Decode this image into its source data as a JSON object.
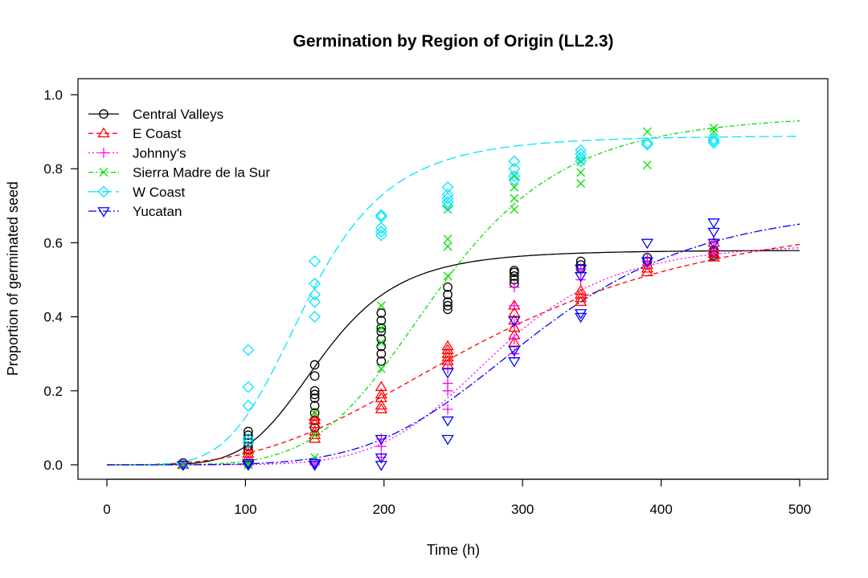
{
  "chart_data": {
    "type": "scatter",
    "title": "Germination by Region of Origin (LL2.3)",
    "xlabel": "Time (h)",
    "ylabel": "Proportion of germinated seed",
    "xlim": [
      0,
      500
    ],
    "ylim": [
      0,
      1
    ],
    "xticks": [
      0,
      100,
      200,
      300,
      400,
      500
    ],
    "yticks": [
      0.0,
      0.2,
      0.4,
      0.6,
      0.8,
      1.0
    ],
    "ytick_labels": [
      "0.0",
      "0.2",
      "0.4",
      "0.6",
      "0.8",
      "1.0"
    ],
    "grid": false,
    "legend_position": "top-left",
    "series": [
      {
        "name": "Central Valleys",
        "color": "#000000",
        "marker": "circle",
        "dash": "",
        "model": {
          "d": 0.58,
          "e": 155,
          "b": -5.4
        },
        "points": [
          [
            55,
            0.0
          ],
          [
            55,
            0.005
          ],
          [
            102,
            0.04
          ],
          [
            102,
            0.05
          ],
          [
            102,
            0.06
          ],
          [
            102,
            0.07
          ],
          [
            102,
            0.08
          ],
          [
            102,
            0.09
          ],
          [
            150,
            0.1
          ],
          [
            150,
            0.12
          ],
          [
            150,
            0.14
          ],
          [
            150,
            0.16
          ],
          [
            150,
            0.18
          ],
          [
            150,
            0.19
          ],
          [
            150,
            0.2
          ],
          [
            150,
            0.24
          ],
          [
            150,
            0.27
          ],
          [
            198,
            0.28
          ],
          [
            198,
            0.3
          ],
          [
            198,
            0.32
          ],
          [
            198,
            0.34
          ],
          [
            198,
            0.36
          ],
          [
            198,
            0.37
          ],
          [
            198,
            0.39
          ],
          [
            198,
            0.41
          ],
          [
            246,
            0.42
          ],
          [
            246,
            0.43
          ],
          [
            246,
            0.44
          ],
          [
            246,
            0.46
          ],
          [
            246,
            0.48
          ],
          [
            294,
            0.49
          ],
          [
            294,
            0.5
          ],
          [
            294,
            0.51
          ],
          [
            294,
            0.52
          ],
          [
            294,
            0.525
          ],
          [
            342,
            0.53
          ],
          [
            342,
            0.54
          ],
          [
            342,
            0.55
          ],
          [
            390,
            0.55
          ],
          [
            390,
            0.56
          ],
          [
            438,
            0.565
          ],
          [
            438,
            0.57
          ],
          [
            438,
            0.575
          ],
          [
            438,
            0.58
          ]
        ]
      },
      {
        "name": "E Coast",
        "color": "#ff0000",
        "marker": "triangle-up",
        "dash": "6,4",
        "model": {
          "d": 0.7,
          "e": 280,
          "b": -3.0
        },
        "points": [
          [
            55,
            0.0
          ],
          [
            102,
            0.01
          ],
          [
            102,
            0.02
          ],
          [
            102,
            0.03
          ],
          [
            102,
            0.04
          ],
          [
            150,
            0.07
          ],
          [
            150,
            0.08
          ],
          [
            150,
            0.09
          ],
          [
            150,
            0.11
          ],
          [
            150,
            0.12
          ],
          [
            150,
            0.13
          ],
          [
            198,
            0.15
          ],
          [
            198,
            0.16
          ],
          [
            198,
            0.18
          ],
          [
            198,
            0.19
          ],
          [
            198,
            0.21
          ],
          [
            246,
            0.27
          ],
          [
            246,
            0.28
          ],
          [
            246,
            0.29
          ],
          [
            246,
            0.3
          ],
          [
            246,
            0.31
          ],
          [
            246,
            0.32
          ],
          [
            294,
            0.33
          ],
          [
            294,
            0.35
          ],
          [
            294,
            0.37
          ],
          [
            294,
            0.39
          ],
          [
            294,
            0.41
          ],
          [
            294,
            0.43
          ],
          [
            342,
            0.44
          ],
          [
            342,
            0.45
          ],
          [
            342,
            0.46
          ],
          [
            342,
            0.47
          ],
          [
            390,
            0.52
          ],
          [
            390,
            0.53
          ],
          [
            390,
            0.54
          ],
          [
            438,
            0.56
          ],
          [
            438,
            0.57
          ],
          [
            438,
            0.58
          ],
          [
            438,
            0.6
          ]
        ]
      },
      {
        "name": "Johnny's",
        "color": "#ff00ff",
        "marker": "plus",
        "dash": "2,3",
        "model": {
          "d": 0.6,
          "e": 280,
          "b": -6.5
        },
        "points": [
          [
            55,
            0.0
          ],
          [
            102,
            0.0
          ],
          [
            102,
            0.005
          ],
          [
            150,
            0.0
          ],
          [
            150,
            0.005
          ],
          [
            198,
            0.02
          ],
          [
            198,
            0.05
          ],
          [
            198,
            0.07
          ],
          [
            246,
            0.15
          ],
          [
            246,
            0.2
          ],
          [
            246,
            0.22
          ],
          [
            246,
            0.26
          ],
          [
            294,
            0.3
          ],
          [
            294,
            0.34
          ],
          [
            294,
            0.38
          ],
          [
            294,
            0.43
          ],
          [
            294,
            0.48
          ],
          [
            342,
            0.5
          ],
          [
            342,
            0.52
          ],
          [
            342,
            0.53
          ],
          [
            390,
            0.54
          ],
          [
            390,
            0.55
          ],
          [
            390,
            0.56
          ],
          [
            438,
            0.57
          ],
          [
            438,
            0.58
          ],
          [
            438,
            0.59
          ],
          [
            438,
            0.6
          ]
        ]
      },
      {
        "name": "Sierra Madre de la Sur",
        "color": "#00e000",
        "marker": "x",
        "dash": "6,3,2,3",
        "model": {
          "d": 0.95,
          "e": 240,
          "b": -5.2
        },
        "points": [
          [
            55,
            0.0
          ],
          [
            102,
            0.0
          ],
          [
            102,
            0.005
          ],
          [
            150,
            0.02
          ],
          [
            150,
            0.08
          ],
          [
            150,
            0.14
          ],
          [
            198,
            0.26
          ],
          [
            198,
            0.33
          ],
          [
            198,
            0.37
          ],
          [
            198,
            0.43
          ],
          [
            246,
            0.51
          ],
          [
            246,
            0.59
          ],
          [
            246,
            0.61
          ],
          [
            246,
            0.69
          ],
          [
            294,
            0.69
          ],
          [
            294,
            0.72
          ],
          [
            294,
            0.75
          ],
          [
            294,
            0.78
          ],
          [
            342,
            0.76
          ],
          [
            342,
            0.79
          ],
          [
            342,
            0.82
          ],
          [
            390,
            0.81
          ],
          [
            390,
            0.9
          ],
          [
            438,
            0.9
          ],
          [
            438,
            0.91
          ]
        ]
      },
      {
        "name": "W Coast",
        "color": "#00e5ff",
        "marker": "diamond",
        "dash": "12,5",
        "model": {
          "d": 0.89,
          "e": 145,
          "b": -4.8
        },
        "points": [
          [
            55,
            0.0
          ],
          [
            102,
            0.06
          ],
          [
            102,
            0.07
          ],
          [
            102,
            0.16
          ],
          [
            102,
            0.21
          ],
          [
            102,
            0.31
          ],
          [
            150,
            0.4
          ],
          [
            150,
            0.44
          ],
          [
            150,
            0.46
          ],
          [
            150,
            0.49
          ],
          [
            150,
            0.55
          ],
          [
            198,
            0.62
          ],
          [
            198,
            0.63
          ],
          [
            198,
            0.64
          ],
          [
            198,
            0.67
          ],
          [
            198,
            0.675
          ],
          [
            246,
            0.7
          ],
          [
            246,
            0.71
          ],
          [
            246,
            0.72
          ],
          [
            246,
            0.73
          ],
          [
            246,
            0.75
          ],
          [
            294,
            0.77
          ],
          [
            294,
            0.78
          ],
          [
            294,
            0.8
          ],
          [
            294,
            0.82
          ],
          [
            342,
            0.82
          ],
          [
            342,
            0.83
          ],
          [
            342,
            0.84
          ],
          [
            342,
            0.85
          ],
          [
            390,
            0.865
          ],
          [
            390,
            0.87
          ],
          [
            438,
            0.87
          ],
          [
            438,
            0.875
          ],
          [
            438,
            0.88
          ]
        ]
      },
      {
        "name": "Yucatan",
        "color": "#0000ff",
        "marker": "triangle-down",
        "dash": "10,3,2,3",
        "model": {
          "d": 0.71,
          "e": 310,
          "b": -5.0
        },
        "points": [
          [
            55,
            0.0
          ],
          [
            102,
            0.0
          ],
          [
            102,
            0.005
          ],
          [
            150,
            0.0
          ],
          [
            150,
            0.005
          ],
          [
            198,
            0.0
          ],
          [
            198,
            0.02
          ],
          [
            198,
            0.07
          ],
          [
            246,
            0.07
          ],
          [
            246,
            0.12
          ],
          [
            246,
            0.25
          ],
          [
            294,
            0.28
          ],
          [
            294,
            0.31
          ],
          [
            294,
            0.39
          ],
          [
            342,
            0.4
          ],
          [
            342,
            0.41
          ],
          [
            342,
            0.51
          ],
          [
            342,
            0.53
          ],
          [
            390,
            0.55
          ],
          [
            390,
            0.6
          ],
          [
            438,
            0.6
          ],
          [
            438,
            0.63
          ],
          [
            438,
            0.655
          ]
        ]
      }
    ]
  }
}
